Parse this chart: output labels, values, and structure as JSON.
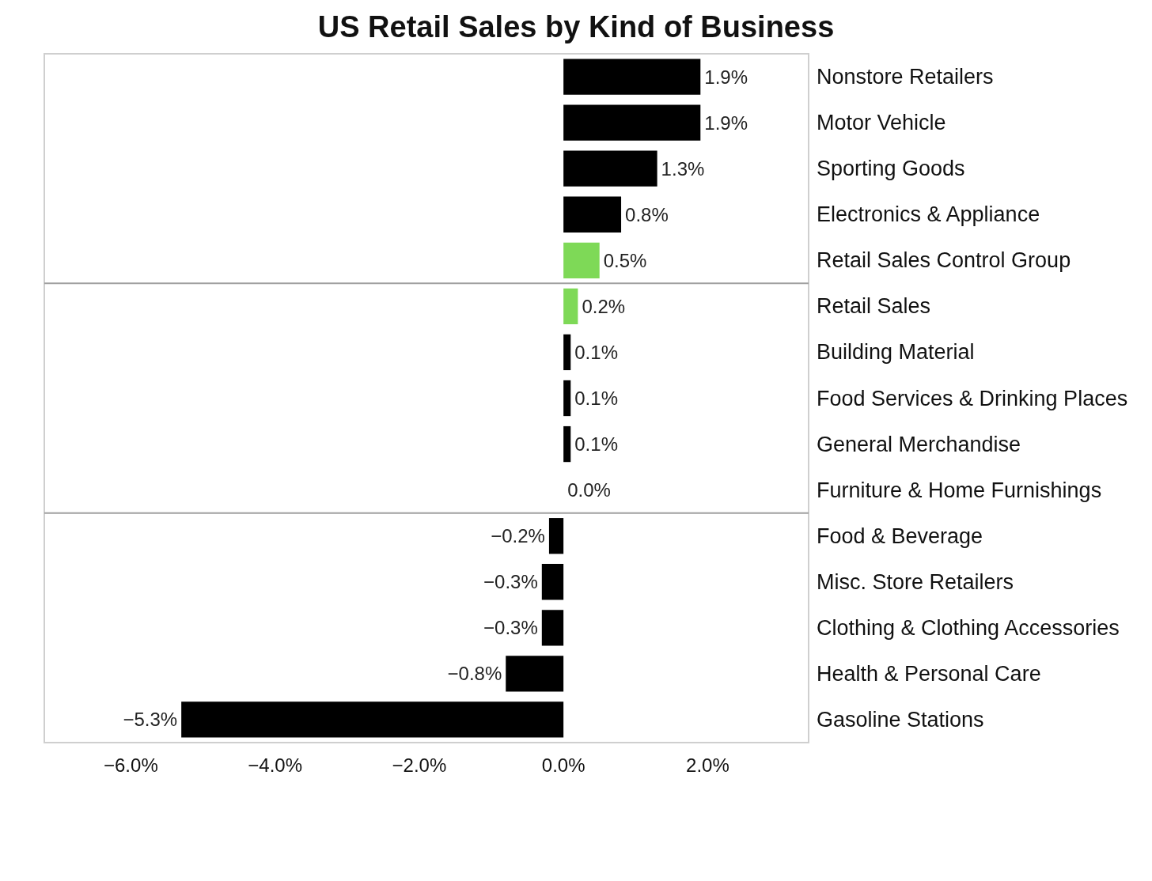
{
  "chart_data": {
    "type": "bar",
    "orientation": "horizontal",
    "title": "US Retail Sales by Kind of Business",
    "categories": [
      "Nonstore Retailers",
      "Motor Vehicle",
      "Sporting Goods",
      "Electronics & Appliance",
      "Retail Sales Control Group",
      "Retail Sales",
      "Building Material",
      "Food Services & Drinking Places",
      "General Merchandise",
      "Furniture & Home Furnishings",
      "Food & Beverage",
      "Misc. Store Retailers",
      "Clothing & Clothing Accessories",
      "Health & Personal Care",
      "Gasoline Stations"
    ],
    "values": [
      1.9,
      1.9,
      1.3,
      0.8,
      0.5,
      0.2,
      0.1,
      0.1,
      0.1,
      0.0,
      -0.2,
      -0.3,
      -0.3,
      -0.8,
      -5.3
    ],
    "value_labels": [
      "1.9%",
      "1.9%",
      "1.3%",
      "0.8%",
      "0.5%",
      "0.2%",
      "0.1%",
      "0.1%",
      "0.1%",
      "0.0%",
      "−0.2%",
      "−0.3%",
      "−0.3%",
      "−0.8%",
      "−5.3%"
    ],
    "colors": [
      "#000000",
      "#000000",
      "#000000",
      "#000000",
      "#7ed957",
      "#7ed957",
      "#000000",
      "#000000",
      "#000000",
      "#000000",
      "#000000",
      "#000000",
      "#000000",
      "#000000",
      "#000000"
    ],
    "xlim": [
      -7.2,
      3.4
    ],
    "xticks": [
      {
        "value": -6,
        "label": "−6.0%"
      },
      {
        "value": -4,
        "label": "−4.0%"
      },
      {
        "value": -2,
        "label": "−2.0%"
      },
      {
        "value": 0,
        "label": "0.0%"
      },
      {
        "value": 2,
        "label": "2.0%"
      }
    ],
    "grid": false
  }
}
